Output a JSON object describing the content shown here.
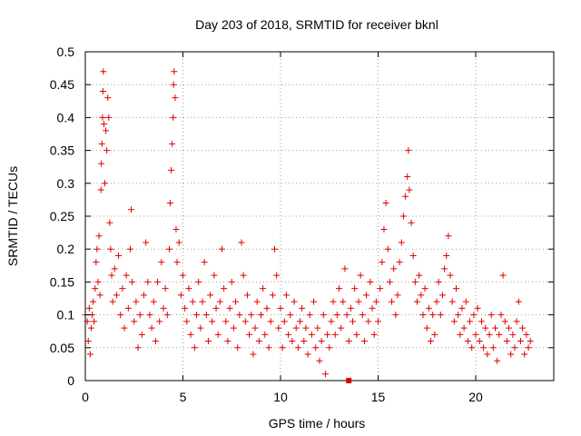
{
  "colors": {
    "points": "#e00000",
    "axis": "#000000",
    "grid": "#a0a0a0",
    "background": "#ffffff"
  },
  "chart_data": {
    "type": "scatter",
    "marker": "plus",
    "title": "Day 203 of 2018, SRMTID for receiver bknl",
    "xlabel": "GPS time / hours",
    "ylabel": "SRMTID / TECUs",
    "xlim": [
      0,
      24
    ],
    "ylim": [
      0,
      0.5
    ],
    "grid": true,
    "xticks": [
      0,
      5,
      10,
      15,
      20
    ],
    "xtick_labels": [
      "0",
      "5",
      "10",
      "15",
      "20"
    ],
    "yticks": [
      0,
      0.05,
      0.1,
      0.15,
      0.2,
      0.25,
      0.3,
      0.35,
      0.4,
      0.45,
      0.5
    ],
    "ytick_labels": [
      "0",
      "0.05",
      "0.1",
      "0.15",
      "0.2",
      "0.25",
      "0.3",
      "0.35",
      "0.4",
      "0.45",
      "0.5"
    ],
    "points": [
      [
        0.0,
        0.1
      ],
      [
        0.1,
        0.09
      ],
      [
        0.15,
        0.06
      ],
      [
        0.2,
        0.11
      ],
      [
        0.25,
        0.04
      ],
      [
        0.3,
        0.08
      ],
      [
        0.35,
        0.1
      ],
      [
        0.4,
        0.12
      ],
      [
        0.45,
        0.09
      ],
      [
        0.5,
        0.14
      ],
      [
        0.55,
        0.18
      ],
      [
        0.6,
        0.2
      ],
      [
        0.65,
        0.15
      ],
      [
        0.7,
        0.22
      ],
      [
        0.75,
        0.13
      ],
      [
        0.8,
        0.29
      ],
      [
        0.82,
        0.33
      ],
      [
        0.85,
        0.36
      ],
      [
        0.88,
        0.4
      ],
      [
        0.9,
        0.44
      ],
      [
        0.92,
        0.47
      ],
      [
        0.95,
        0.39
      ],
      [
        1.0,
        0.3
      ],
      [
        1.05,
        0.38
      ],
      [
        1.1,
        0.35
      ],
      [
        1.15,
        0.43
      ],
      [
        1.2,
        0.4
      ],
      [
        1.25,
        0.24
      ],
      [
        1.3,
        0.2
      ],
      [
        1.35,
        0.16
      ],
      [
        1.4,
        0.12
      ],
      [
        1.5,
        0.17
      ],
      [
        1.6,
        0.13
      ],
      [
        1.7,
        0.19
      ],
      [
        1.8,
        0.1
      ],
      [
        1.9,
        0.14
      ],
      [
        2.0,
        0.08
      ],
      [
        2.1,
        0.16
      ],
      [
        2.2,
        0.11
      ],
      [
        2.3,
        0.2
      ],
      [
        2.35,
        0.26
      ],
      [
        2.4,
        0.15
      ],
      [
        2.5,
        0.09
      ],
      [
        2.6,
        0.12
      ],
      [
        2.7,
        0.05
      ],
      [
        2.8,
        0.1
      ],
      [
        2.9,
        0.07
      ],
      [
        3.0,
        0.13
      ],
      [
        3.1,
        0.21
      ],
      [
        3.2,
        0.15
      ],
      [
        3.3,
        0.1
      ],
      [
        3.4,
        0.08
      ],
      [
        3.5,
        0.12
      ],
      [
        3.6,
        0.06
      ],
      [
        3.7,
        0.15
      ],
      [
        3.8,
        0.09
      ],
      [
        3.9,
        0.18
      ],
      [
        4.0,
        0.11
      ],
      [
        4.1,
        0.14
      ],
      [
        4.2,
        0.1
      ],
      [
        4.3,
        0.2
      ],
      [
        4.35,
        0.27
      ],
      [
        4.4,
        0.32
      ],
      [
        4.45,
        0.36
      ],
      [
        4.5,
        0.4
      ],
      [
        4.52,
        0.45
      ],
      [
        4.55,
        0.47
      ],
      [
        4.6,
        0.43
      ],
      [
        4.65,
        0.23
      ],
      [
        4.7,
        0.18
      ],
      [
        4.8,
        0.21
      ],
      [
        4.9,
        0.13
      ],
      [
        5.0,
        0.16
      ],
      [
        5.1,
        0.11
      ],
      [
        5.2,
        0.09
      ],
      [
        5.3,
        0.14
      ],
      [
        5.4,
        0.07
      ],
      [
        5.5,
        0.12
      ],
      [
        5.6,
        0.05
      ],
      [
        5.7,
        0.1
      ],
      [
        5.8,
        0.15
      ],
      [
        5.9,
        0.08
      ],
      [
        6.0,
        0.12
      ],
      [
        6.1,
        0.18
      ],
      [
        6.2,
        0.1
      ],
      [
        6.3,
        0.06
      ],
      [
        6.4,
        0.13
      ],
      [
        6.5,
        0.09
      ],
      [
        6.6,
        0.16
      ],
      [
        6.7,
        0.11
      ],
      [
        6.8,
        0.07
      ],
      [
        6.9,
        0.12
      ],
      [
        7.0,
        0.2
      ],
      [
        7.1,
        0.14
      ],
      [
        7.2,
        0.09
      ],
      [
        7.3,
        0.06
      ],
      [
        7.4,
        0.11
      ],
      [
        7.5,
        0.15
      ],
      [
        7.6,
        0.08
      ],
      [
        7.7,
        0.12
      ],
      [
        7.8,
        0.05
      ],
      [
        7.9,
        0.1
      ],
      [
        8.0,
        0.21
      ],
      [
        8.1,
        0.16
      ],
      [
        8.2,
        0.09
      ],
      [
        8.3,
        0.13
      ],
      [
        8.4,
        0.07
      ],
      [
        8.5,
        0.1
      ],
      [
        8.6,
        0.04
      ],
      [
        8.7,
        0.08
      ],
      [
        8.8,
        0.12
      ],
      [
        8.9,
        0.06
      ],
      [
        9.0,
        0.1
      ],
      [
        9.1,
        0.14
      ],
      [
        9.2,
        0.07
      ],
      [
        9.3,
        0.11
      ],
      [
        9.4,
        0.05
      ],
      [
        9.5,
        0.09
      ],
      [
        9.6,
        0.13
      ],
      [
        9.7,
        0.2
      ],
      [
        9.8,
        0.16
      ],
      [
        9.9,
        0.08
      ],
      [
        10.0,
        0.11
      ],
      [
        10.1,
        0.05
      ],
      [
        10.2,
        0.09
      ],
      [
        10.3,
        0.13
      ],
      [
        10.4,
        0.07
      ],
      [
        10.5,
        0.1
      ],
      [
        10.6,
        0.06
      ],
      [
        10.7,
        0.12
      ],
      [
        10.8,
        0.08
      ],
      [
        10.9,
        0.05
      ],
      [
        11.0,
        0.09
      ],
      [
        11.1,
        0.11
      ],
      [
        11.2,
        0.06
      ],
      [
        11.3,
        0.08
      ],
      [
        11.4,
        0.04
      ],
      [
        11.5,
        0.1
      ],
      [
        11.6,
        0.07
      ],
      [
        11.7,
        0.12
      ],
      [
        11.8,
        0.05
      ],
      [
        11.9,
        0.08
      ],
      [
        12.0,
        0.03
      ],
      [
        12.1,
        0.06
      ],
      [
        12.2,
        0.1
      ],
      [
        12.3,
        0.01
      ],
      [
        12.4,
        0.07
      ],
      [
        12.5,
        0.05
      ],
      [
        12.6,
        0.09
      ],
      [
        12.7,
        0.12
      ],
      [
        12.8,
        0.07
      ],
      [
        12.9,
        0.1
      ],
      [
        13.0,
        0.14
      ],
      [
        13.1,
        0.08
      ],
      [
        13.2,
        0.12
      ],
      [
        13.3,
        0.17
      ],
      [
        13.4,
        0.1
      ],
      [
        13.5,
        0.06
      ],
      [
        13.6,
        0.11
      ],
      [
        13.7,
        0.09
      ],
      [
        13.8,
        0.14
      ],
      [
        13.9,
        0.07
      ],
      [
        14.0,
        0.12
      ],
      [
        14.1,
        0.16
      ],
      [
        14.2,
        0.1
      ],
      [
        14.3,
        0.06
      ],
      [
        14.4,
        0.13
      ],
      [
        14.5,
        0.09
      ],
      [
        14.6,
        0.15
      ],
      [
        14.7,
        0.11
      ],
      [
        14.8,
        0.07
      ],
      [
        14.9,
        0.12
      ],
      [
        15.0,
        0.09
      ],
      [
        15.1,
        0.14
      ],
      [
        15.2,
        0.18
      ],
      [
        15.3,
        0.23
      ],
      [
        15.4,
        0.27
      ],
      [
        15.5,
        0.2
      ],
      [
        15.6,
        0.15
      ],
      [
        15.7,
        0.12
      ],
      [
        15.8,
        0.17
      ],
      [
        15.9,
        0.1
      ],
      [
        16.0,
        0.13
      ],
      [
        16.1,
        0.18
      ],
      [
        16.2,
        0.21
      ],
      [
        16.3,
        0.25
      ],
      [
        16.4,
        0.28
      ],
      [
        16.5,
        0.31
      ],
      [
        16.55,
        0.35
      ],
      [
        16.6,
        0.29
      ],
      [
        16.7,
        0.24
      ],
      [
        16.8,
        0.19
      ],
      [
        16.9,
        0.15
      ],
      [
        17.0,
        0.12
      ],
      [
        17.1,
        0.16
      ],
      [
        17.2,
        0.13
      ],
      [
        17.3,
        0.1
      ],
      [
        17.4,
        0.14
      ],
      [
        17.5,
        0.08
      ],
      [
        17.6,
        0.11
      ],
      [
        17.7,
        0.06
      ],
      [
        17.8,
        0.1
      ],
      [
        17.9,
        0.07
      ],
      [
        18.0,
        0.12
      ],
      [
        18.1,
        0.15
      ],
      [
        18.2,
        0.1
      ],
      [
        18.3,
        0.13
      ],
      [
        18.4,
        0.17
      ],
      [
        18.5,
        0.19
      ],
      [
        18.6,
        0.22
      ],
      [
        18.7,
        0.16
      ],
      [
        18.8,
        0.12
      ],
      [
        18.9,
        0.09
      ],
      [
        19.0,
        0.14
      ],
      [
        19.1,
        0.1
      ],
      [
        19.2,
        0.07
      ],
      [
        19.3,
        0.11
      ],
      [
        19.4,
        0.08
      ],
      [
        19.5,
        0.12
      ],
      [
        19.6,
        0.06
      ],
      [
        19.7,
        0.09
      ],
      [
        19.8,
        0.05
      ],
      [
        19.9,
        0.1
      ],
      [
        20.0,
        0.07
      ],
      [
        20.1,
        0.11
      ],
      [
        20.2,
        0.06
      ],
      [
        20.3,
        0.09
      ],
      [
        20.4,
        0.05
      ],
      [
        20.5,
        0.08
      ],
      [
        20.6,
        0.04
      ],
      [
        20.7,
        0.07
      ],
      [
        20.8,
        0.1
      ],
      [
        20.9,
        0.05
      ],
      [
        21.0,
        0.08
      ],
      [
        21.1,
        0.03
      ],
      [
        21.2,
        0.07
      ],
      [
        21.3,
        0.1
      ],
      [
        21.4,
        0.16
      ],
      [
        21.5,
        0.09
      ],
      [
        21.6,
        0.06
      ],
      [
        21.7,
        0.08
      ],
      [
        21.8,
        0.04
      ],
      [
        21.9,
        0.07
      ],
      [
        22.0,
        0.05
      ],
      [
        22.1,
        0.09
      ],
      [
        22.2,
        0.12
      ],
      [
        22.3,
        0.06
      ],
      [
        22.4,
        0.08
      ],
      [
        22.5,
        0.04
      ],
      [
        22.6,
        0.07
      ],
      [
        22.7,
        0.05
      ],
      [
        22.8,
        0.06
      ]
    ]
  }
}
